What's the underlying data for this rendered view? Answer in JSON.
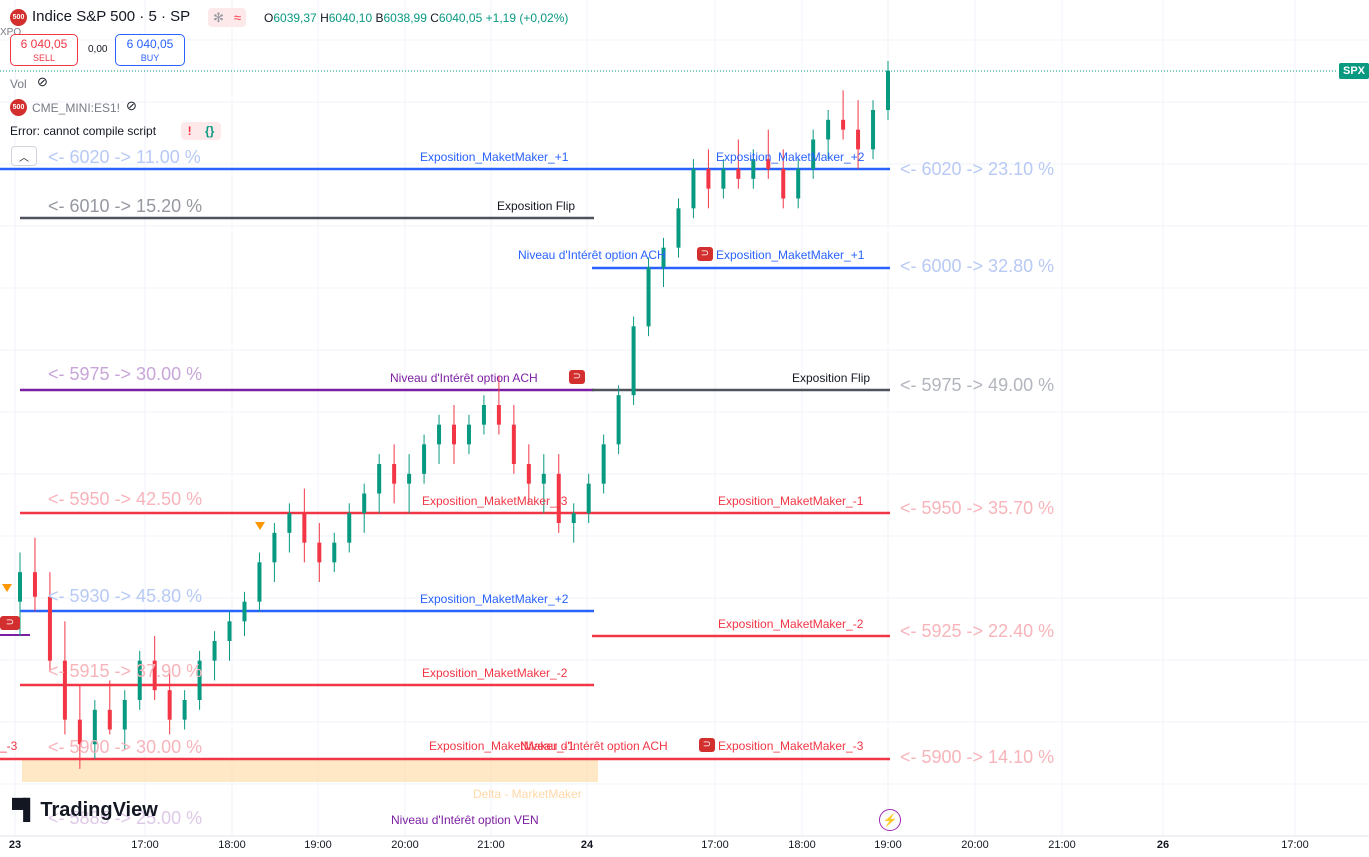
{
  "header": {
    "symbol_badge": "500",
    "title": "Indice S&P 500 · 5 · SP",
    "ohlc": {
      "o_key": "O",
      "o_val": "6039,37",
      "h_key": "H",
      "h_val": "6040,10",
      "b_key": "B",
      "b_val": "6038,99",
      "c_key": "C",
      "c_val": "6040,05",
      "change": "+1,19 (+0,02%)"
    },
    "sell_price": "6 040,05",
    "sell_label": "SELL",
    "spread": "0,00",
    "buy_price": "6 040,05",
    "buy_label": "BUY",
    "xpo_fragment": "XPO"
  },
  "indicators": {
    "vol_label": "Vol",
    "cme_badge": "500",
    "cme_label": "CME_MINI:ES1!",
    "error_text": "Error: cannot compile script",
    "error_mark": "!",
    "error_code_icon": "{}",
    "collapse_icon": "chevron-up-icon"
  },
  "price_tag": {
    "label": "SPX",
    "color": "#089981",
    "price": 6040.05
  },
  "colors": {
    "blue": "#2962ff",
    "red": "#f23645",
    "gray": "#50535e",
    "purple": "#7b1fa2",
    "orange": "#ff9800",
    "up": "#089981",
    "down": "#f23645"
  },
  "left_levels": [
    {
      "text": "<- 6020 -> 11.00 %",
      "color": "#b8c9f5"
    },
    {
      "text": "<- 6010 -> 15.20 %",
      "color": "#9598a1"
    },
    {
      "text": "<- 5975 -> 30.00 %",
      "color": "#c8a6d8"
    },
    {
      "text": "<- 5950 -> 42.50 %",
      "color": "#f7b4ba"
    },
    {
      "text": "<- 5930 -> 45.80 %",
      "color": "#b8c9f5"
    },
    {
      "text": "<- 5915 -> 37.90 %",
      "color": "#f7b4ba"
    },
    {
      "text": "<- 5900 -> 30.00 %",
      "color": "#f7b4ba"
    },
    {
      "text": "<- 5885 -> 25.00 %",
      "color": "#c8a6d8"
    }
  ],
  "right_levels": [
    {
      "text": "<- 6020 -> 23.10 %",
      "color": "#b8c9f5"
    },
    {
      "text": "<- 6000 -> 32.80 %",
      "color": "#b8c9f5"
    },
    {
      "text": "<- 5975 -> 49.00 %",
      "color": "#b2b5be"
    },
    {
      "text": "<- 5950 -> 35.70 %",
      "color": "#f7b4ba"
    },
    {
      "text": "<- 5925 -> 22.40 %",
      "color": "#f7b4ba"
    },
    {
      "text": "<- 5900 -> 14.10 %",
      "color": "#f7b4ba"
    }
  ],
  "line_labels": [
    {
      "text": "Exposition_MaketMaker_+1",
      "color": "#2962ff"
    },
    {
      "text": "Exposition_MaketMaker_+2",
      "color": "#2962ff"
    },
    {
      "text": "Exposition Flip",
      "color": "#131722"
    },
    {
      "text": "Niveau d'Intérêt option ACH",
      "color": "#2962ff"
    },
    {
      "text": "Exposition_MaketMaker_+1",
      "color": "#2962ff"
    },
    {
      "text": "Niveau d'Intérêt option ACH",
      "color": "#7b1fa2"
    },
    {
      "text": "Exposition Flip",
      "color": "#131722"
    },
    {
      "text": "Exposition_MaketMaker_-3",
      "color": "#f23645"
    },
    {
      "text": "Exposition_MaketMaker_-1",
      "color": "#f23645"
    },
    {
      "text": "Exposition_MaketMaker_+2",
      "color": "#2962ff"
    },
    {
      "text": "Exposition_MaketMaker_-2",
      "color": "#f23645"
    },
    {
      "text": "Exposition_MaketMaker_-2",
      "color": "#f23645"
    },
    {
      "text": "Exposition_MaketMaker_-1",
      "color": "#f23645"
    },
    {
      "text": "Niveau d'Intérêt option ACH",
      "color": "#f23645"
    },
    {
      "text": "Exposition_MaketMaker_-3",
      "color": "#f23645"
    },
    {
      "text": "_-3",
      "color": "#f23645"
    },
    {
      "text": "Delta - MarketMaker",
      "color": "#ffd8a8"
    },
    {
      "text": "Niveau d'Intérêt option VEN",
      "color": "#7b1fa2"
    }
  ],
  "time_axis": [
    "23",
    "17:00",
    "18:00",
    "19:00",
    "20:00",
    "21:00",
    "24",
    "17:00",
    "18:00",
    "19:00",
    "20:00",
    "21:00",
    "26",
    "17:00"
  ],
  "branding": {
    "name": "TradingView",
    "lightning_icon": "lightning-icon"
  },
  "candles": [
    [
      5932,
      5942,
      5925,
      5938
    ],
    [
      5938,
      5945,
      5930,
      5933
    ],
    [
      5933,
      5938,
      5918,
      5920
    ],
    [
      5920,
      5928,
      5905,
      5908
    ],
    [
      5908,
      5915,
      5898,
      5903
    ],
    [
      5903,
      5912,
      5900,
      5910
    ],
    [
      5910,
      5916,
      5905,
      5906
    ],
    [
      5906,
      5914,
      5902,
      5912
    ],
    [
      5912,
      5922,
      5910,
      5920
    ],
    [
      5920,
      5925,
      5912,
      5914
    ],
    [
      5914,
      5918,
      5905,
      5908
    ],
    [
      5908,
      5914,
      5906,
      5912
    ],
    [
      5912,
      5922,
      5910,
      5920
    ],
    [
      5920,
      5926,
      5916,
      5924
    ],
    [
      5924,
      5930,
      5920,
      5928
    ],
    [
      5928,
      5934,
      5925,
      5932
    ],
    [
      5932,
      5942,
      5930,
      5940
    ],
    [
      5940,
      5948,
      5936,
      5946
    ],
    [
      5946,
      5952,
      5942,
      5950
    ],
    [
      5950,
      5955,
      5940,
      5944
    ],
    [
      5944,
      5948,
      5936,
      5940
    ],
    [
      5940,
      5946,
      5938,
      5944
    ],
    [
      5944,
      5952,
      5942,
      5950
    ],
    [
      5950,
      5956,
      5946,
      5954
    ],
    [
      5954,
      5962,
      5950,
      5960
    ],
    [
      5960,
      5964,
      5952,
      5956
    ],
    [
      5956,
      5962,
      5950,
      5958
    ],
    [
      5958,
      5966,
      5956,
      5964
    ],
    [
      5964,
      5970,
      5960,
      5968
    ],
    [
      5968,
      5972,
      5960,
      5964
    ],
    [
      5964,
      5970,
      5962,
      5968
    ],
    [
      5968,
      5974,
      5966,
      5972
    ],
    [
      5972,
      5978,
      5966,
      5968
    ],
    [
      5968,
      5972,
      5958,
      5960
    ],
    [
      5960,
      5964,
      5952,
      5956
    ],
    [
      5956,
      5962,
      5950,
      5958
    ],
    [
      5958,
      5962,
      5946,
      5948
    ],
    [
      5948,
      5952,
      5944,
      5950
    ],
    [
      5950,
      5958,
      5948,
      5956
    ],
    [
      5956,
      5966,
      5954,
      5964
    ],
    [
      5964,
      5976,
      5962,
      5974
    ],
    [
      5974,
      5990,
      5972,
      5988
    ],
    [
      5988,
      6002,
      5986,
      6000
    ],
    [
      6000,
      6006,
      5996,
      6004
    ],
    [
      6004,
      6014,
      6002,
      6012
    ],
    [
      6012,
      6022,
      6010,
      6020
    ],
    [
      6020,
      6024,
      6012,
      6016
    ],
    [
      6016,
      6022,
      6014,
      6020
    ],
    [
      6020,
      6026,
      6016,
      6018
    ],
    [
      6018,
      6024,
      6016,
      6022
    ],
    [
      6022,
      6028,
      6018,
      6020
    ],
    [
      6020,
      6024,
      6012,
      6014
    ],
    [
      6014,
      6022,
      6012,
      6020
    ],
    [
      6020,
      6028,
      6018,
      6026
    ],
    [
      6026,
      6032,
      6022,
      6030
    ],
    [
      6030,
      6036,
      6026,
      6028
    ],
    [
      6028,
      6034,
      6020,
      6024
    ],
    [
      6024,
      6034,
      6022,
      6032
    ],
    [
      6032,
      6042,
      6030,
      6040
    ]
  ]
}
